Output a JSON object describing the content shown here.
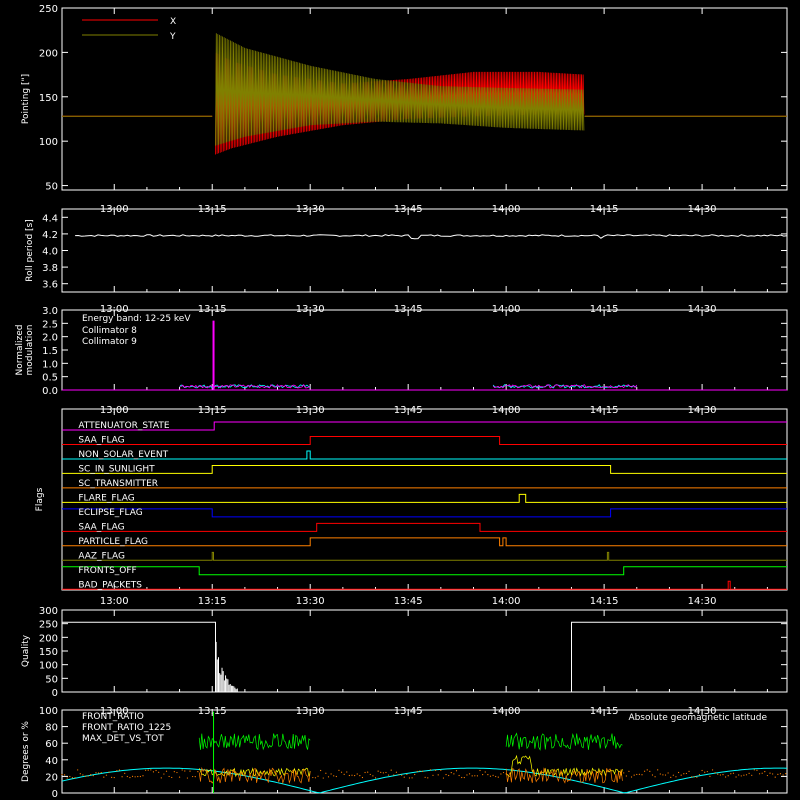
{
  "time_ticks": [
    "13:00",
    "13:15",
    "13:30",
    "13:45",
    "14:00",
    "14:15",
    "14:30"
  ],
  "time_range_min": [
    -8,
    103
  ],
  "colors": {
    "red": "#ff0000",
    "olive": "#808000",
    "white": "#ffffff",
    "cyan": "#00ffff",
    "magenta": "#ff00ff",
    "yellow": "#ffff00",
    "green": "#00ff00",
    "blue": "#0000ff",
    "orange": "#ff8000"
  },
  "chart_data": [
    {
      "type": "line",
      "ylabel": "Pointing [\"]",
      "ylim": [
        45,
        250
      ],
      "yticks": [
        50,
        100,
        150,
        200,
        250
      ],
      "series": [
        {
          "name": "X",
          "color": "#ff0000",
          "baseline": 128,
          "envelope": [
            [
              15,
              128,
              128
            ],
            [
              15.5,
              85,
              200
            ],
            [
              18,
              92,
              190
            ],
            [
              25,
              105,
              175
            ],
            [
              35,
              118,
              165
            ],
            [
              45,
              125,
              170
            ],
            [
              55,
              128,
              178
            ],
            [
              65,
              130,
              178
            ],
            [
              72,
              130,
              175
            ]
          ],
          "after": 128
        },
        {
          "name": "Y",
          "color": "#808000",
          "baseline": 128,
          "envelope": [
            [
              15,
              128,
              128
            ],
            [
              15.5,
              95,
              222
            ],
            [
              20,
              105,
              205
            ],
            [
              30,
              118,
              185
            ],
            [
              40,
              122,
              170
            ],
            [
              50,
              120,
              162
            ],
            [
              60,
              115,
              160
            ],
            [
              72,
              112,
              158
            ]
          ],
          "after": 128
        }
      ]
    },
    {
      "type": "line",
      "ylabel": "Roll period [s]",
      "ylim": [
        3.5,
        4.5
      ],
      "yticks": [
        3.6,
        3.8,
        4.0,
        4.2,
        4.4
      ],
      "series": [
        {
          "color": "#ffffff",
          "value": 4.18
        }
      ]
    },
    {
      "type": "line",
      "ylabel": "Normalized modulation",
      "ylim": [
        0,
        3.0
      ],
      "yticks": [
        0.0,
        0.5,
        1.0,
        1.5,
        2.0,
        2.5,
        3.0
      ],
      "annotation": "Energy band: 12-25 keV",
      "series": [
        {
          "name": "Collimator 8",
          "color": "#00ffff"
        },
        {
          "name": "Collimator 9",
          "color": "#ff00ff"
        }
      ],
      "segments": [
        [
          10,
          30
        ],
        [
          58,
          80
        ]
      ],
      "spike": {
        "t": 15.2,
        "value": 2.6
      }
    },
    {
      "type": "line",
      "ylabel": "Flags",
      "flags": [
        {
          "name": "ATTENUATOR_STATE",
          "color": "#ff00ff",
          "steps": [
            [
              -8,
              0
            ],
            [
              15.3,
              1
            ],
            [
              103,
              1
            ]
          ]
        },
        {
          "name": "SAA_FLAG",
          "color": "#ff0000",
          "steps": [
            [
              -8,
              0
            ],
            [
              30,
              1
            ],
            [
              59,
              0
            ],
            [
              103,
              0
            ]
          ]
        },
        {
          "name": "NON_SOLAR_EVENT",
          "color": "#00ffff",
          "steps": [
            [
              -8,
              0
            ],
            [
              29.5,
              1
            ],
            [
              30,
              0
            ],
            [
              103,
              0
            ]
          ]
        },
        {
          "name": "SC_IN_SUNLIGHT",
          "color": "#ffff00",
          "steps": [
            [
              -8,
              0
            ],
            [
              15,
              1
            ],
            [
              76,
              0
            ],
            [
              103,
              0
            ]
          ]
        },
        {
          "name": "SC_TRANSMITTER",
          "color": "#ff8000",
          "steps": [
            [
              -8,
              0
            ],
            [
              103,
              0
            ]
          ]
        },
        {
          "name": "FLARE_FLAG",
          "color": "#ffff00",
          "steps": [
            [
              -8,
              0
            ],
            [
              62,
              1
            ],
            [
              63,
              0
            ],
            [
              103,
              0
            ]
          ]
        },
        {
          "name": "ECLIPSE_FLAG",
          "color": "#0000ff",
          "steps": [
            [
              -8,
              1
            ],
            [
              15,
              0
            ],
            [
              76,
              1
            ],
            [
              103,
              1
            ]
          ]
        },
        {
          "name": "SAA_FLAG",
          "color": "#ff0000",
          "steps": [
            [
              -8,
              0
            ],
            [
              31,
              1
            ],
            [
              56,
              0
            ],
            [
              103,
              0
            ]
          ]
        },
        {
          "name": "PARTICLE_FLAG",
          "color": "#ff8000",
          "steps": [
            [
              -8,
              0
            ],
            [
              30,
              1
            ],
            [
              59,
              0
            ],
            [
              59.5,
              1
            ],
            [
              60,
              0
            ],
            [
              103,
              0
            ]
          ]
        },
        {
          "name": "AAZ_FLAG",
          "color": "#808000",
          "steps": [
            [
              -8,
              0
            ],
            [
              15,
              1
            ],
            [
              15.2,
              0
            ],
            [
              75.5,
              1
            ],
            [
              75.7,
              0
            ],
            [
              103,
              0
            ]
          ]
        },
        {
          "name": "FRONTS_OFF",
          "color": "#00ff00",
          "steps": [
            [
              -8,
              1
            ],
            [
              13,
              0
            ],
            [
              78,
              1
            ],
            [
              103,
              1
            ]
          ]
        },
        {
          "name": "BAD_PACKETS",
          "color": "#ff0000",
          "steps": [
            [
              -8,
              0
            ],
            [
              94,
              1
            ],
            [
              94.3,
              0
            ],
            [
              103,
              0
            ]
          ]
        }
      ]
    },
    {
      "type": "line",
      "ylabel": "Quality",
      "ylim": [
        0,
        300
      ],
      "yticks": [
        0,
        50,
        100,
        150,
        200,
        250,
        300
      ],
      "series": [
        {
          "color": "#ffffff"
        }
      ],
      "segments": [
        [
          -8,
          15.5,
          255
        ],
        [
          70,
          103,
          255
        ]
      ]
    },
    {
      "type": "line",
      "ylabel": "Degrees or %",
      "ylim": [
        0,
        100
      ],
      "yticks": [
        0,
        20,
        40,
        60,
        80,
        100
      ],
      "series": [
        {
          "name": "FRONT_RATIO",
          "color": "#ffff00"
        },
        {
          "name": "FRONT_RATIO_1225",
          "color": "#00ff00"
        },
        {
          "name": "MAX_DET_VS_TOT",
          "color": "#ff8000"
        },
        {
          "name": "Absolute geomagnetic latitude",
          "color": "#00ffff"
        }
      ]
    }
  ]
}
